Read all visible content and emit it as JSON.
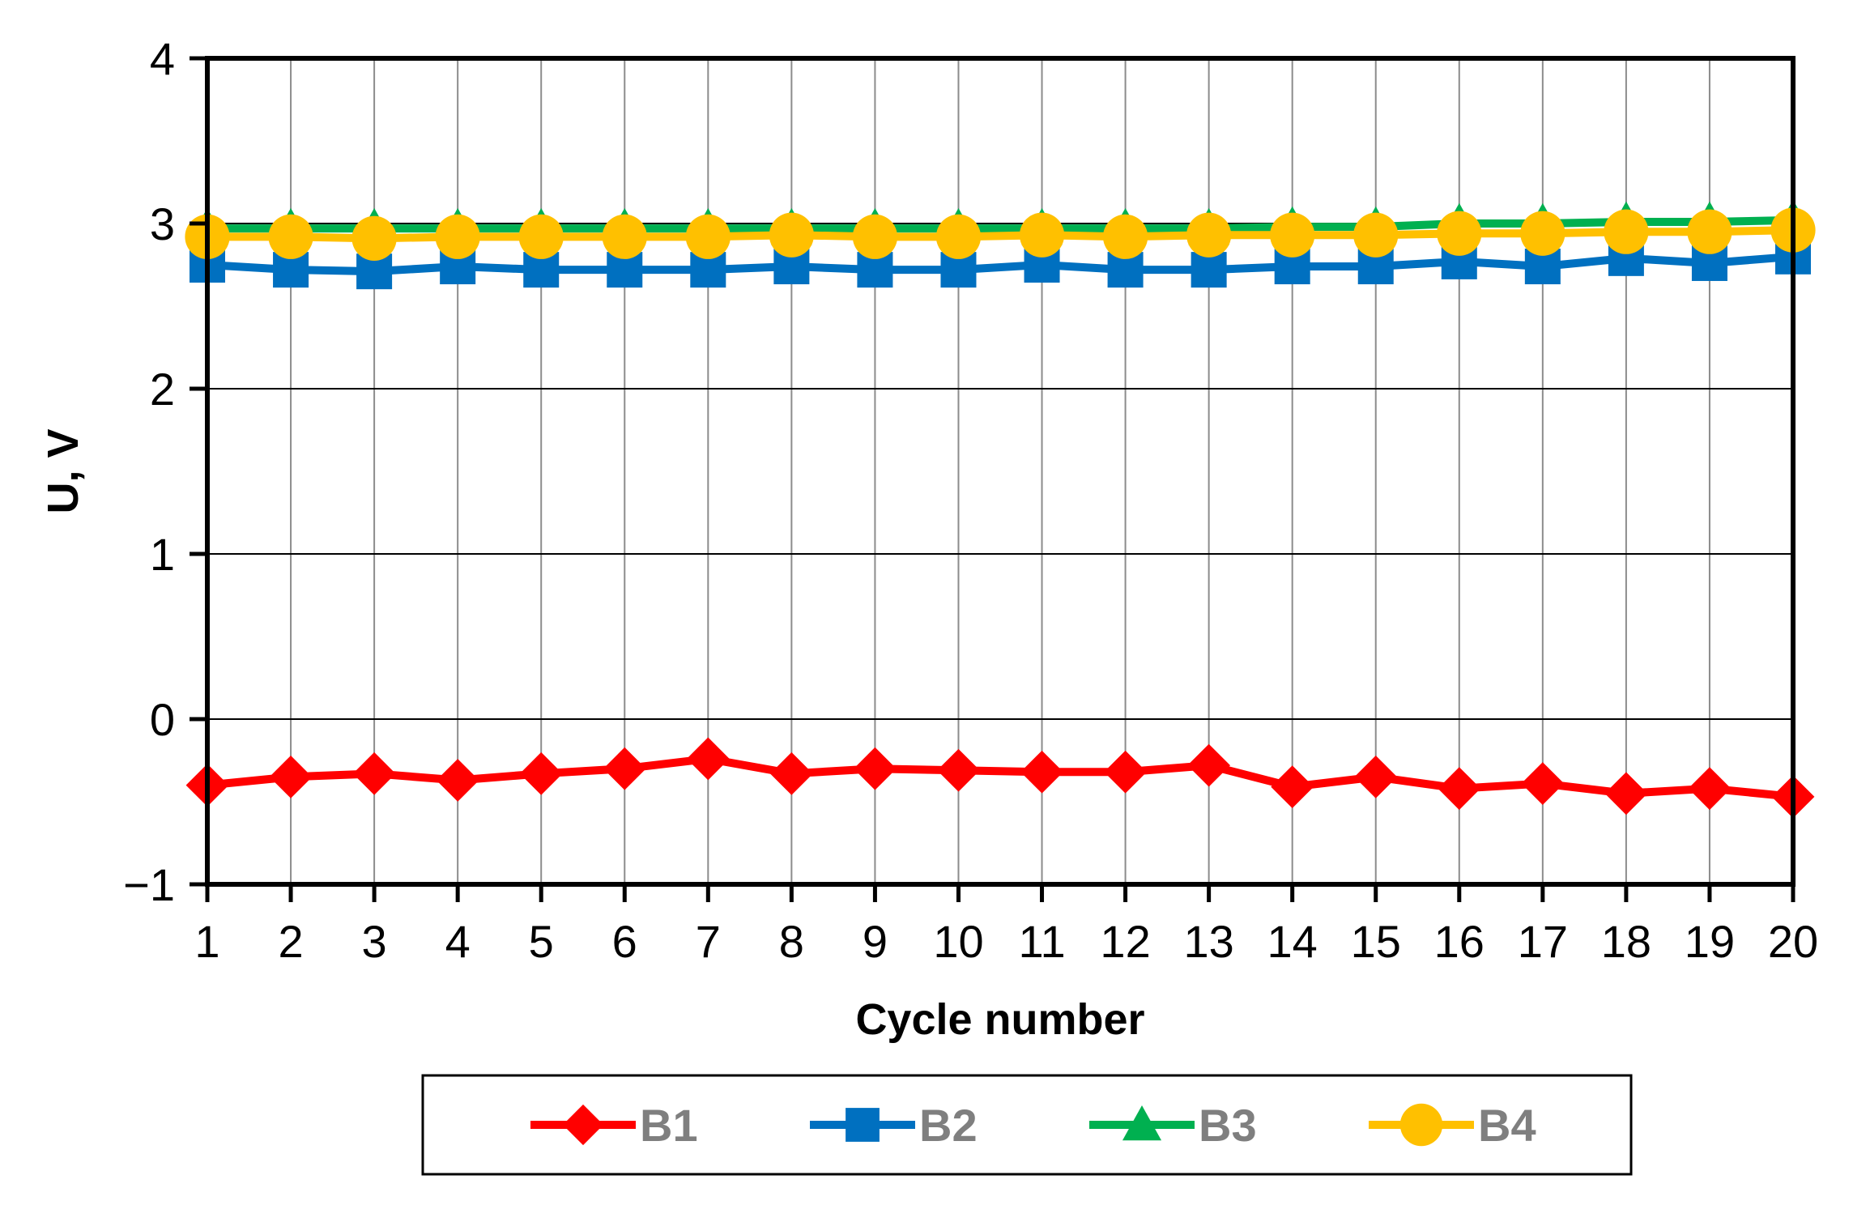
{
  "chart_data": {
    "type": "line",
    "title": "",
    "xlabel": "Cycle number",
    "ylabel": "U, V",
    "x": [
      1,
      2,
      3,
      4,
      5,
      6,
      7,
      8,
      9,
      10,
      11,
      12,
      13,
      14,
      15,
      16,
      17,
      18,
      19,
      20
    ],
    "x_tick_labels": [
      "1",
      "2",
      "3",
      "4",
      "5",
      "6",
      "7",
      "8",
      "9",
      "10",
      "11",
      "12",
      "13",
      "14",
      "15",
      "16",
      "17",
      "18",
      "19",
      "20"
    ],
    "ylim": [
      -1,
      4
    ],
    "y_ticks": [
      -1,
      0,
      1,
      2,
      3,
      4
    ],
    "y_tick_labels": [
      "−1",
      "0",
      "1",
      "2",
      "3",
      "4"
    ],
    "grid": true,
    "legend": {
      "position": "bottom",
      "boxed": true
    },
    "series": [
      {
        "name": "B1",
        "color": "#ff0000",
        "marker": "diamond",
        "values": [
          -0.4,
          -0.35,
          -0.33,
          -0.37,
          -0.33,
          -0.3,
          -0.24,
          -0.33,
          -0.3,
          -0.31,
          -0.32,
          -0.32,
          -0.28,
          -0.41,
          -0.35,
          -0.42,
          -0.39,
          -0.45,
          -0.42,
          -0.47
        ]
      },
      {
        "name": "B2",
        "color": "#0070c0",
        "marker": "square",
        "values": [
          2.75,
          2.72,
          2.71,
          2.74,
          2.72,
          2.72,
          2.72,
          2.74,
          2.72,
          2.72,
          2.75,
          2.72,
          2.72,
          2.74,
          2.74,
          2.77,
          2.74,
          2.79,
          2.76,
          2.8
        ]
      },
      {
        "name": "B3",
        "color": "#00b050",
        "marker": "triangle",
        "values": [
          2.97,
          2.97,
          2.97,
          2.97,
          2.97,
          2.97,
          2.97,
          2.97,
          2.97,
          2.97,
          2.97,
          2.97,
          2.97,
          2.98,
          2.98,
          3.0,
          3.0,
          3.01,
          3.01,
          3.02
        ]
      },
      {
        "name": "B4",
        "color": "#ffc000",
        "marker": "circle",
        "values": [
          2.92,
          2.92,
          2.91,
          2.92,
          2.92,
          2.92,
          2.92,
          2.93,
          2.92,
          2.92,
          2.93,
          2.92,
          2.93,
          2.93,
          2.93,
          2.94,
          2.94,
          2.95,
          2.95,
          2.96
        ]
      }
    ]
  }
}
